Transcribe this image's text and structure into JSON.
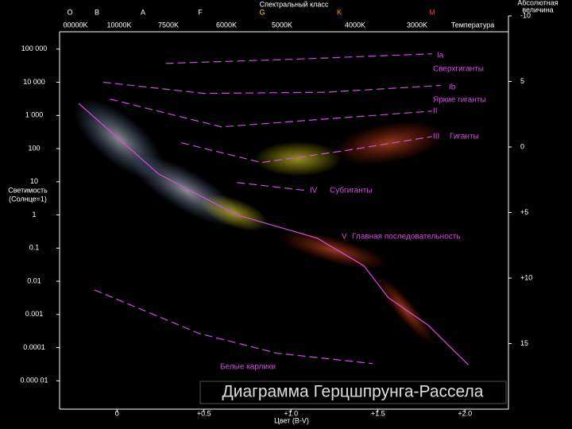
{
  "chart_data": {
    "type": "line",
    "title": "Диаграмма Герцшпрунга-Рассела",
    "top_title": "Спектральный класс",
    "spectral_classes": [
      "O",
      "B",
      "A",
      "F",
      "G",
      "K",
      "M"
    ],
    "spectral_colors": [
      "#ffffff",
      "#ffffff",
      "#ffffff",
      "#ffffff",
      "#ffe600",
      "#ff9a00",
      "#ff2a2a"
    ],
    "temperatures": [
      "00000K",
      "10000K",
      "7500K",
      "6000K",
      "5000K",
      "4000K",
      "3000K"
    ],
    "temperature_label": "Температура",
    "xlabel": "Цвет (B-V)",
    "ylabel": [
      "Светимость",
      "(Солнце=1)"
    ],
    "y2label": [
      "Абсолютная",
      "величина"
    ],
    "xlim": [
      -0.33,
      2.25
    ],
    "xticks": [
      0.0,
      {
        "value": 0.5,
        "label": "+0.5"
      },
      {
        "value": 1.0,
        "label": "+1.0"
      },
      {
        "value": 1.5,
        "label": "+1.5"
      },
      {
        "value": 2.0,
        "label": "+2.0"
      }
    ],
    "ylim": [
      1.4e-06,
      1000000
    ],
    "log_y": true,
    "yticks": [
      {
        "value": 100000,
        "label": "100 000"
      },
      {
        "value": 10000,
        "label": "10 000"
      },
      {
        "value": 1000,
        "label": "1 000"
      },
      100,
      10,
      1,
      0.1,
      0.01,
      0.001,
      0.0001,
      {
        "value": 1e-05,
        "label": "0.000 01"
      }
    ],
    "y2lim": [
      20,
      -10
    ],
    "y2ticks": [
      -10,
      {
        "value": -5,
        "label": "5"
      },
      0,
      {
        "value": 5,
        "label": "+5"
      },
      {
        "value": 10,
        "label": "+10"
      },
      15
    ],
    "line_color": "#d24ce0",
    "series": [
      {
        "name": "Ia",
        "x": [
          0.28,
          1.0,
          1.81
        ],
        "values": [
          37000,
          49000,
          72000
        ]
      },
      {
        "name": "Ib",
        "x": [
          -0.08,
          0.5,
          1.2,
          1.86
        ],
        "values": [
          10000,
          4600,
          5000,
          8000
        ]
      },
      {
        "name": "II",
        "x": [
          -0.04,
          0.6,
          1.2,
          1.81
        ],
        "values": [
          3100,
          450,
          780,
          1350
        ]
      },
      {
        "name": "III",
        "x": [
          0.37,
          0.83,
          1.3,
          1.81
        ],
        "values": [
          150,
          38,
          85,
          230
        ]
      },
      {
        "name": "IV",
        "x": [
          0.69,
          1.08
        ],
        "values": [
          9.5,
          5.5
        ]
      },
      {
        "name": "V",
        "x": [
          -0.22,
          0.24,
          0.69,
          1.15,
          1.42,
          1.56,
          1.79,
          2.02
        ],
        "values": [
          2300,
          17,
          1,
          0.2,
          0.029,
          0.0032,
          0.00047,
          3e-05
        ]
      },
      {
        "name": "Белые карлики",
        "x": [
          -0.13,
          0.47,
          0.92,
          1.47
        ],
        "values": [
          0.0055,
          0.00027,
          6.8e-05,
          3.3e-05
        ]
      }
    ],
    "annotations": [
      "Сверхгиганты",
      "Яркие гиганты",
      "Гиганты",
      "Субгиганты",
      "Главная последовательность"
    ]
  }
}
